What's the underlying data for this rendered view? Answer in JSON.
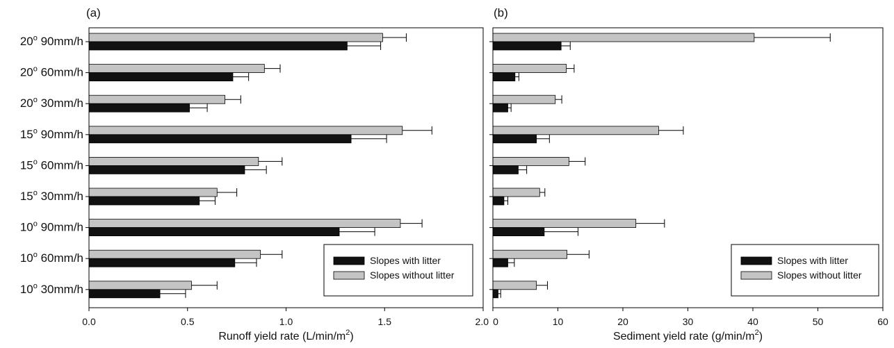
{
  "colors": {
    "with_litter": "#111111",
    "without_litter": "#c4c4c4",
    "axis": "#000000",
    "background": "#ffffff"
  },
  "chart_data": [
    {
      "type": "bar",
      "orientation": "horizontal",
      "panel_label": "(a)",
      "xlabel_prefix": "Runoff yield rate (L/min/m",
      "xlabel_sup": "2",
      "xlabel_suffix": ")",
      "xlim": [
        0,
        2.0
      ],
      "xticks": [
        "0.0",
        "0.5",
        "1.0",
        "1.5",
        "2.0"
      ],
      "categories": [
        {
          "deg": "20",
          "rain": "90mm/h"
        },
        {
          "deg": "20",
          "rain": "60mm/h"
        },
        {
          "deg": "20",
          "rain": "30mm/h"
        },
        {
          "deg": "15",
          "rain": "90mm/h"
        },
        {
          "deg": "15",
          "rain": "60mm/h"
        },
        {
          "deg": "15",
          "rain": "30mm/h"
        },
        {
          "deg": "10",
          "rain": "90mm/h"
        },
        {
          "deg": "10",
          "rain": "60mm/h"
        },
        {
          "deg": "10",
          "rain": "30mm/h"
        }
      ],
      "series": [
        {
          "name": "Slopes with litter",
          "values": [
            1.31,
            0.73,
            0.51,
            1.33,
            0.79,
            0.56,
            1.27,
            0.74,
            0.36
          ],
          "errors": [
            0.17,
            0.08,
            0.09,
            0.18,
            0.11,
            0.08,
            0.18,
            0.11,
            0.13
          ]
        },
        {
          "name": "Slopes without litter",
          "values": [
            1.49,
            0.89,
            0.69,
            1.59,
            0.86,
            0.65,
            1.58,
            0.87,
            0.52
          ],
          "errors": [
            0.12,
            0.08,
            0.08,
            0.15,
            0.12,
            0.1,
            0.11,
            0.11,
            0.13
          ]
        }
      ],
      "legend_position": "bottom-right",
      "grid": false
    },
    {
      "type": "bar",
      "orientation": "horizontal",
      "panel_label": "(b)",
      "xlabel_prefix": "Sediment yield rate (g/min/m",
      "xlabel_sup": "2",
      "xlabel_suffix": ")",
      "xlim": [
        0,
        60
      ],
      "xticks": [
        "0",
        "10",
        "20",
        "30",
        "40",
        "50",
        "60"
      ],
      "series": [
        {
          "name": "Slopes with litter",
          "values": [
            10.5,
            3.4,
            2.3,
            6.7,
            3.9,
            1.7,
            7.9,
            2.3,
            0.8
          ],
          "errors": [
            1.4,
            0.6,
            0.5,
            2.0,
            1.3,
            0.6,
            5.2,
            1.0,
            0.4
          ]
        },
        {
          "name": "Slopes without litter",
          "values": [
            40.2,
            11.3,
            9.6,
            25.5,
            11.7,
            7.2,
            22.0,
            11.4,
            6.7
          ],
          "errors": [
            11.7,
            1.2,
            1.0,
            3.8,
            2.5,
            0.8,
            4.4,
            3.4,
            1.7
          ]
        }
      ],
      "legend_position": "bottom-right",
      "grid": false
    }
  ]
}
